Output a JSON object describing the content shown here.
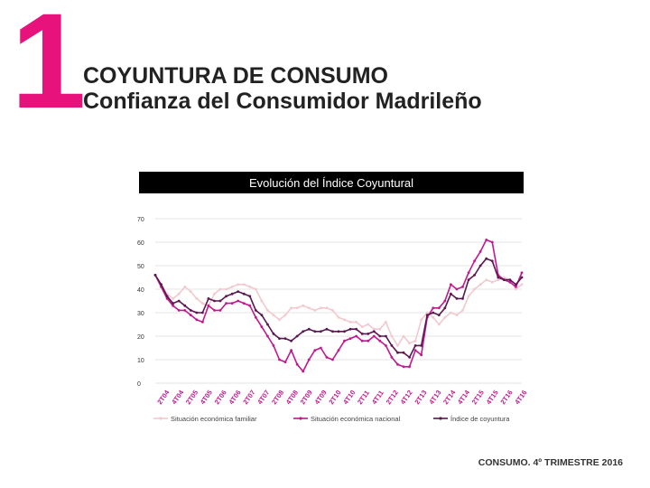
{
  "page": {
    "number": "1",
    "title": "COYUNTURA DE CONSUMO",
    "subtitle": "Confianza del Consumidor Madrileño",
    "chart_banner": "Evolución del Índice Coyuntural",
    "footer": "CONSUMO. 4º TRIMESTRE 2016"
  },
  "colors": {
    "accent": "#e8127c",
    "familiar": "#f2c9cf",
    "nacional": "#c2188f",
    "indice": "#5a1750"
  },
  "chart_data": {
    "type": "line",
    "ylim": [
      0,
      70
    ],
    "yticks": [
      0,
      10,
      20,
      30,
      40,
      50,
      60,
      70
    ],
    "xticks": [
      "2T04",
      "4T04",
      "2T05",
      "4T05",
      "2T06",
      "4T06",
      "2T07",
      "4T07",
      "2T08",
      "4T08",
      "2T09",
      "4T09",
      "2T10",
      "4T10",
      "2T11",
      "4T11",
      "2T12",
      "4T12",
      "2T13",
      "4T13",
      "2T14",
      "4T14",
      "2T15",
      "4T15",
      "2T16",
      "4T16"
    ],
    "grid": true,
    "legend": "bottom",
    "series": [
      {
        "name": "Situación económica familiar",
        "color": "#f2c9cf",
        "values": [
          46,
          42,
          38,
          36,
          38,
          41,
          39,
          36,
          34,
          33,
          38,
          40,
          40,
          41,
          42,
          42,
          41,
          40,
          35,
          31,
          29,
          27,
          29,
          32,
          32,
          33,
          32,
          31,
          32,
          32,
          31,
          28,
          27,
          26,
          26,
          24,
          25,
          23,
          23,
          26,
          20,
          16,
          20,
          17,
          18,
          27,
          30,
          28,
          25,
          28,
          30,
          29,
          31,
          37,
          40,
          42,
          44,
          43,
          44,
          45,
          44,
          40,
          42
        ]
      },
      {
        "name": "Situación económica nacional",
        "color": "#c2188f",
        "values": [
          46,
          41,
          36,
          33,
          31,
          31,
          29,
          27,
          26,
          33,
          31,
          31,
          34,
          34,
          35,
          34,
          33,
          28,
          24,
          20,
          16,
          10,
          9,
          14,
          8,
          5,
          10,
          14,
          15,
          11,
          10,
          14,
          18,
          19,
          20,
          18,
          18,
          20,
          18,
          16,
          11,
          8,
          7,
          7,
          14,
          12,
          28,
          32,
          32,
          35,
          42,
          40,
          41,
          47,
          52,
          56,
          61,
          60,
          46,
          44,
          43,
          41,
          47
        ]
      },
      {
        "name": "Índice de coyuntura",
        "color": "#5a1750",
        "values": [
          46,
          42,
          37,
          34,
          35,
          33,
          31,
          30,
          30,
          36,
          35,
          35,
          37,
          38,
          39,
          38,
          37,
          31,
          29,
          25,
          21,
          19,
          19,
          18,
          20,
          22,
          23,
          22,
          22,
          23,
          22,
          22,
          22,
          23,
          23,
          21,
          21,
          22,
          20,
          20,
          16,
          13,
          13,
          11,
          16,
          16,
          29,
          30,
          29,
          32,
          38,
          36,
          36,
          44,
          46,
          50,
          53,
          52,
          45,
          44,
          44,
          42,
          45
        ]
      }
    ]
  }
}
